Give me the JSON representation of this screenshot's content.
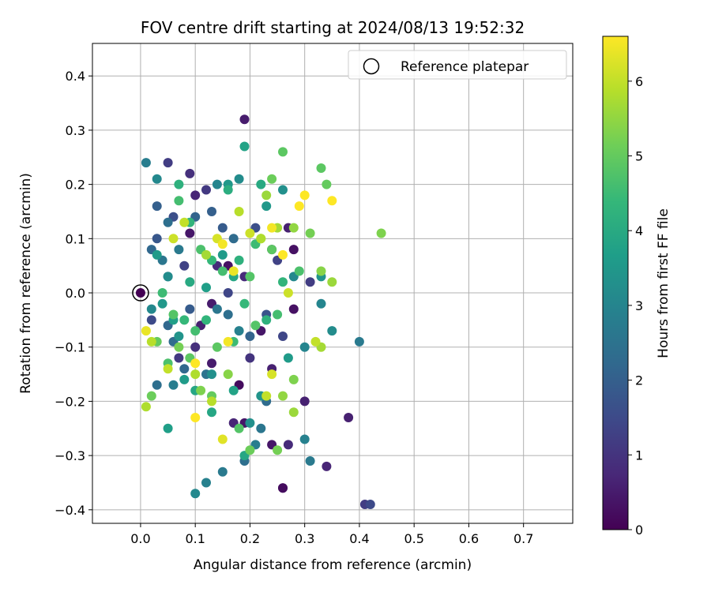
{
  "chart_data": {
    "type": "scatter",
    "title": "FOV centre drift starting at 2024/08/13 19:52:32",
    "xlabel": "Angular distance from reference (arcmin)",
    "ylabel": "Rotation from reference (arcmin)",
    "xlim": [
      -0.088,
      0.79
    ],
    "ylim": [
      -0.425,
      0.46
    ],
    "xticks": [
      "0.0",
      "0.1",
      "0.2",
      "0.3",
      "0.4",
      "0.5",
      "0.6",
      "0.7"
    ],
    "yticks": [
      "0.4",
      "0.3",
      "0.2",
      "0.1",
      "0.0",
      "−0.1",
      "−0.2",
      "−0.3",
      "−0.4"
    ],
    "grid": true,
    "legend": {
      "location": "upper right",
      "entries": [
        "Reference platepar"
      ]
    },
    "reference_point": {
      "x": 0.0,
      "y": 0.0
    },
    "colorbar": {
      "label": "Hours from first FF file",
      "range": [
        0,
        6.6
      ],
      "ticks": [
        "0",
        "1",
        "2",
        "3",
        "4",
        "5",
        "6"
      ],
      "colormap": "viridis",
      "colors": [
        "#440154",
        "#482878",
        "#3e4989",
        "#31688e",
        "#26828e",
        "#1f9e89",
        "#35b779",
        "#6ece58",
        "#b5de2b",
        "#fde725"
      ]
    },
    "series": [
      {
        "points": [
          [
            0.19,
            0.32,
            0.5
          ],
          [
            0.05,
            0.24,
            1.2
          ],
          [
            0.09,
            0.22,
            0.9
          ],
          [
            0.12,
            0.19,
            1.1
          ],
          [
            0.1,
            0.18,
            0.7
          ],
          [
            0.06,
            0.14,
            1.6
          ],
          [
            0.09,
            0.11,
            0.4
          ],
          [
            0.03,
            0.1,
            1.8
          ],
          [
            0.08,
            0.05,
            1.3
          ],
          [
            0.05,
            0.03,
            2.1
          ],
          [
            0.14,
            0.05,
            0.8
          ],
          [
            0.16,
            0.05,
            0.3
          ],
          [
            0.02,
            -0.05,
            1.5
          ],
          [
            0.05,
            -0.06,
            2.2
          ],
          [
            0.1,
            -0.1,
            0.9
          ],
          [
            0.13,
            -0.13,
            0.5
          ],
          [
            0.18,
            -0.17,
            0.2
          ],
          [
            0.2,
            -0.12,
            1.0
          ],
          [
            0.24,
            -0.14,
            0.6
          ],
          [
            0.22,
            -0.07,
            0.4
          ],
          [
            0.26,
            -0.08,
            1.4
          ],
          [
            0.28,
            -0.03,
            0.3
          ],
          [
            0.3,
            -0.2,
            0.6
          ],
          [
            0.24,
            -0.28,
            0.4
          ],
          [
            0.27,
            -0.28,
            0.8
          ],
          [
            0.34,
            -0.32,
            0.7
          ],
          [
            0.38,
            -0.23,
            0.6
          ],
          [
            0.41,
            -0.39,
            1.2
          ],
          [
            0.42,
            -0.39,
            1.5
          ],
          [
            0.26,
            -0.36,
            0.5
          ],
          [
            0.17,
            -0.24,
            0.7
          ],
          [
            0.19,
            -0.24,
            0.4
          ],
          [
            0.07,
            -0.12,
            1.1
          ],
          [
            0.11,
            -0.06,
            0.6
          ],
          [
            0.28,
            0.08,
            0.3
          ],
          [
            0.25,
            0.06,
            1.3
          ],
          [
            0.21,
            0.12,
            1.6
          ],
          [
            0.24,
            0.08,
            0.9
          ],
          [
            0.27,
            0.12,
            0.6
          ],
          [
            0.31,
            0.02,
            1.2
          ],
          [
            0.19,
            0.03,
            0.8
          ],
          [
            0.23,
            -0.04,
            1.7
          ],
          [
            0.13,
            -0.02,
            0.5
          ],
          [
            0.16,
            0.0,
            1.4
          ],
          [
            0.09,
            -0.03,
            1.9
          ],
          [
            0.06,
            -0.09,
            2.3
          ],
          [
            0.03,
            -0.17,
            2.4
          ],
          [
            0.04,
            0.06,
            2.6
          ],
          [
            0.02,
            0.08,
            2.2
          ],
          [
            0.03,
            0.16,
            2.0
          ],
          [
            0.05,
            0.13,
            2.4
          ],
          [
            0.07,
            0.08,
            2.7
          ],
          [
            0.1,
            0.14,
            2.1
          ],
          [
            0.13,
            0.15,
            2.0
          ],
          [
            0.15,
            0.12,
            1.9
          ],
          [
            0.17,
            0.1,
            2.3
          ],
          [
            0.12,
            -0.15,
            2.5
          ],
          [
            0.08,
            -0.14,
            2.2
          ],
          [
            0.06,
            -0.17,
            2.8
          ],
          [
            0.14,
            -0.03,
            2.6
          ],
          [
            0.16,
            -0.04,
            2.4
          ],
          [
            0.18,
            -0.07,
            2.9
          ],
          [
            0.2,
            -0.08,
            2.1
          ],
          [
            0.23,
            -0.2,
            2.3
          ],
          [
            0.22,
            -0.25,
            2.6
          ],
          [
            0.21,
            -0.28,
            2.8
          ],
          [
            0.19,
            -0.31,
            2.4
          ],
          [
            0.15,
            -0.33,
            2.7
          ],
          [
            0.12,
            -0.35,
            2.9
          ],
          [
            0.1,
            -0.37,
            3.1
          ],
          [
            0.31,
            -0.31,
            2.7
          ],
          [
            0.3,
            -0.27,
            2.9
          ],
          [
            0.3,
            -0.1,
            3.0
          ],
          [
            0.4,
            -0.09,
            2.7
          ],
          [
            0.35,
            -0.07,
            3.2
          ],
          [
            0.33,
            -0.02,
            3.0
          ],
          [
            0.33,
            0.03,
            3.4
          ],
          [
            0.28,
            0.03,
            3.1
          ],
          [
            0.26,
            0.19,
            3.3
          ],
          [
            0.23,
            0.16,
            3.5
          ],
          [
            0.18,
            0.21,
            3.2
          ],
          [
            0.16,
            0.2,
            3.5
          ],
          [
            0.14,
            0.2,
            3.0
          ],
          [
            0.03,
            0.21,
            3.1
          ],
          [
            0.01,
            0.24,
            2.8
          ],
          [
            0.02,
            -0.03,
            3.1
          ],
          [
            0.05,
            0.03,
            3.2
          ],
          [
            0.04,
            -0.02,
            3.5
          ],
          [
            0.06,
            -0.05,
            3.7
          ],
          [
            0.07,
            -0.08,
            3.4
          ],
          [
            0.08,
            -0.16,
            3.6
          ],
          [
            0.1,
            -0.18,
            3.9
          ],
          [
            0.13,
            -0.15,
            3.3
          ],
          [
            0.17,
            -0.18,
            3.8
          ],
          [
            0.19,
            -0.3,
            3.9
          ],
          [
            0.2,
            -0.24,
            3.3
          ],
          [
            0.05,
            -0.25,
            3.7
          ],
          [
            0.13,
            -0.22,
            3.9
          ],
          [
            0.27,
            -0.12,
            3.6
          ],
          [
            0.22,
            -0.19,
            3.4
          ],
          [
            0.19,
            0.27,
            3.8
          ],
          [
            0.22,
            0.2,
            4.0
          ],
          [
            0.16,
            0.19,
            4.1
          ],
          [
            0.15,
            0.07,
            3.6
          ],
          [
            0.17,
            0.03,
            3.9
          ],
          [
            0.12,
            0.01,
            3.7
          ],
          [
            0.09,
            0.02,
            4.0
          ],
          [
            0.03,
            0.07,
            3.6
          ],
          [
            0.07,
            0.2,
            4.2
          ],
          [
            0.07,
            0.17,
            4.6
          ],
          [
            0.09,
            0.13,
            4.3
          ],
          [
            0.11,
            0.08,
            4.7
          ],
          [
            0.13,
            0.06,
            4.4
          ],
          [
            0.15,
            0.04,
            4.6
          ],
          [
            0.18,
            0.06,
            4.2
          ],
          [
            0.2,
            0.03,
            4.8
          ],
          [
            0.21,
            0.09,
            4.5
          ],
          [
            0.24,
            0.08,
            4.9
          ],
          [
            0.26,
            0.02,
            4.3
          ],
          [
            0.29,
            0.04,
            4.7
          ],
          [
            0.25,
            -0.04,
            4.6
          ],
          [
            0.23,
            -0.05,
            4.2
          ],
          [
            0.21,
            -0.06,
            4.8
          ],
          [
            0.19,
            -0.02,
            4.4
          ],
          [
            0.17,
            -0.09,
            4.5
          ],
          [
            0.14,
            -0.1,
            4.9
          ],
          [
            0.12,
            -0.05,
            4.3
          ],
          [
            0.1,
            -0.07,
            4.6
          ],
          [
            0.08,
            -0.05,
            4.4
          ],
          [
            0.06,
            -0.04,
            4.8
          ],
          [
            0.04,
            0.0,
            4.5
          ],
          [
            0.03,
            -0.09,
            5.0
          ],
          [
            0.02,
            -0.19,
            5.1
          ],
          [
            0.05,
            -0.13,
            4.7
          ],
          [
            0.07,
            -0.1,
            5.2
          ],
          [
            0.09,
            -0.12,
            4.9
          ],
          [
            0.11,
            -0.18,
            5.3
          ],
          [
            0.13,
            -0.19,
            5.0
          ],
          [
            0.16,
            -0.15,
            5.4
          ],
          [
            0.18,
            -0.25,
            4.8
          ],
          [
            0.2,
            -0.29,
            5.1
          ],
          [
            0.25,
            -0.29,
            5.2
          ],
          [
            0.26,
            -0.19,
            5.5
          ],
          [
            0.28,
            -0.16,
            5.3
          ],
          [
            0.28,
            -0.22,
            5.6
          ],
          [
            0.33,
            -0.1,
            5.7
          ],
          [
            0.34,
            0.2,
            5.0
          ],
          [
            0.33,
            0.23,
            4.9
          ],
          [
            0.31,
            0.11,
            5.2
          ],
          [
            0.33,
            0.04,
            5.4
          ],
          [
            0.28,
            0.12,
            5.5
          ],
          [
            0.25,
            0.12,
            5.7
          ],
          [
            0.23,
            0.18,
            5.6
          ],
          [
            0.22,
            0.1,
            5.8
          ],
          [
            0.26,
            0.26,
            4.9
          ],
          [
            0.24,
            0.21,
            5.1
          ],
          [
            0.44,
            0.11,
            5.3
          ],
          [
            0.35,
            0.02,
            5.6
          ],
          [
            0.32,
            -0.09,
            6.0
          ],
          [
            0.27,
            0.0,
            6.1
          ],
          [
            0.24,
            -0.15,
            6.2
          ],
          [
            0.23,
            -0.19,
            6.0
          ],
          [
            0.15,
            -0.27,
            6.3
          ],
          [
            0.13,
            -0.2,
            5.9
          ],
          [
            0.1,
            -0.15,
            5.8
          ],
          [
            0.05,
            -0.14,
            6.0
          ],
          [
            0.01,
            -0.21,
            5.8
          ],
          [
            0.02,
            -0.09,
            5.9
          ],
          [
            0.06,
            0.1,
            6.1
          ],
          [
            0.08,
            0.13,
            6.0
          ],
          [
            0.12,
            0.07,
            5.7
          ],
          [
            0.14,
            0.1,
            6.2
          ],
          [
            0.18,
            0.15,
            5.9
          ],
          [
            0.2,
            0.11,
            6.1
          ],
          [
            0.22,
            0.1,
            5.8
          ],
          [
            0.24,
            0.12,
            6.5
          ],
          [
            0.26,
            0.07,
            6.6
          ],
          [
            0.29,
            0.16,
            6.6
          ],
          [
            0.3,
            0.18,
            6.6
          ],
          [
            0.35,
            0.17,
            6.6
          ],
          [
            0.15,
            0.09,
            6.5
          ],
          [
            0.17,
            0.04,
            6.4
          ],
          [
            0.16,
            -0.09,
            6.5
          ],
          [
            0.1,
            -0.13,
            6.6
          ],
          [
            0.1,
            -0.23,
            6.6
          ],
          [
            0.01,
            -0.07,
            6.4
          ],
          [
            0.26,
            -0.36,
            0.2
          ]
        ]
      }
    ]
  }
}
